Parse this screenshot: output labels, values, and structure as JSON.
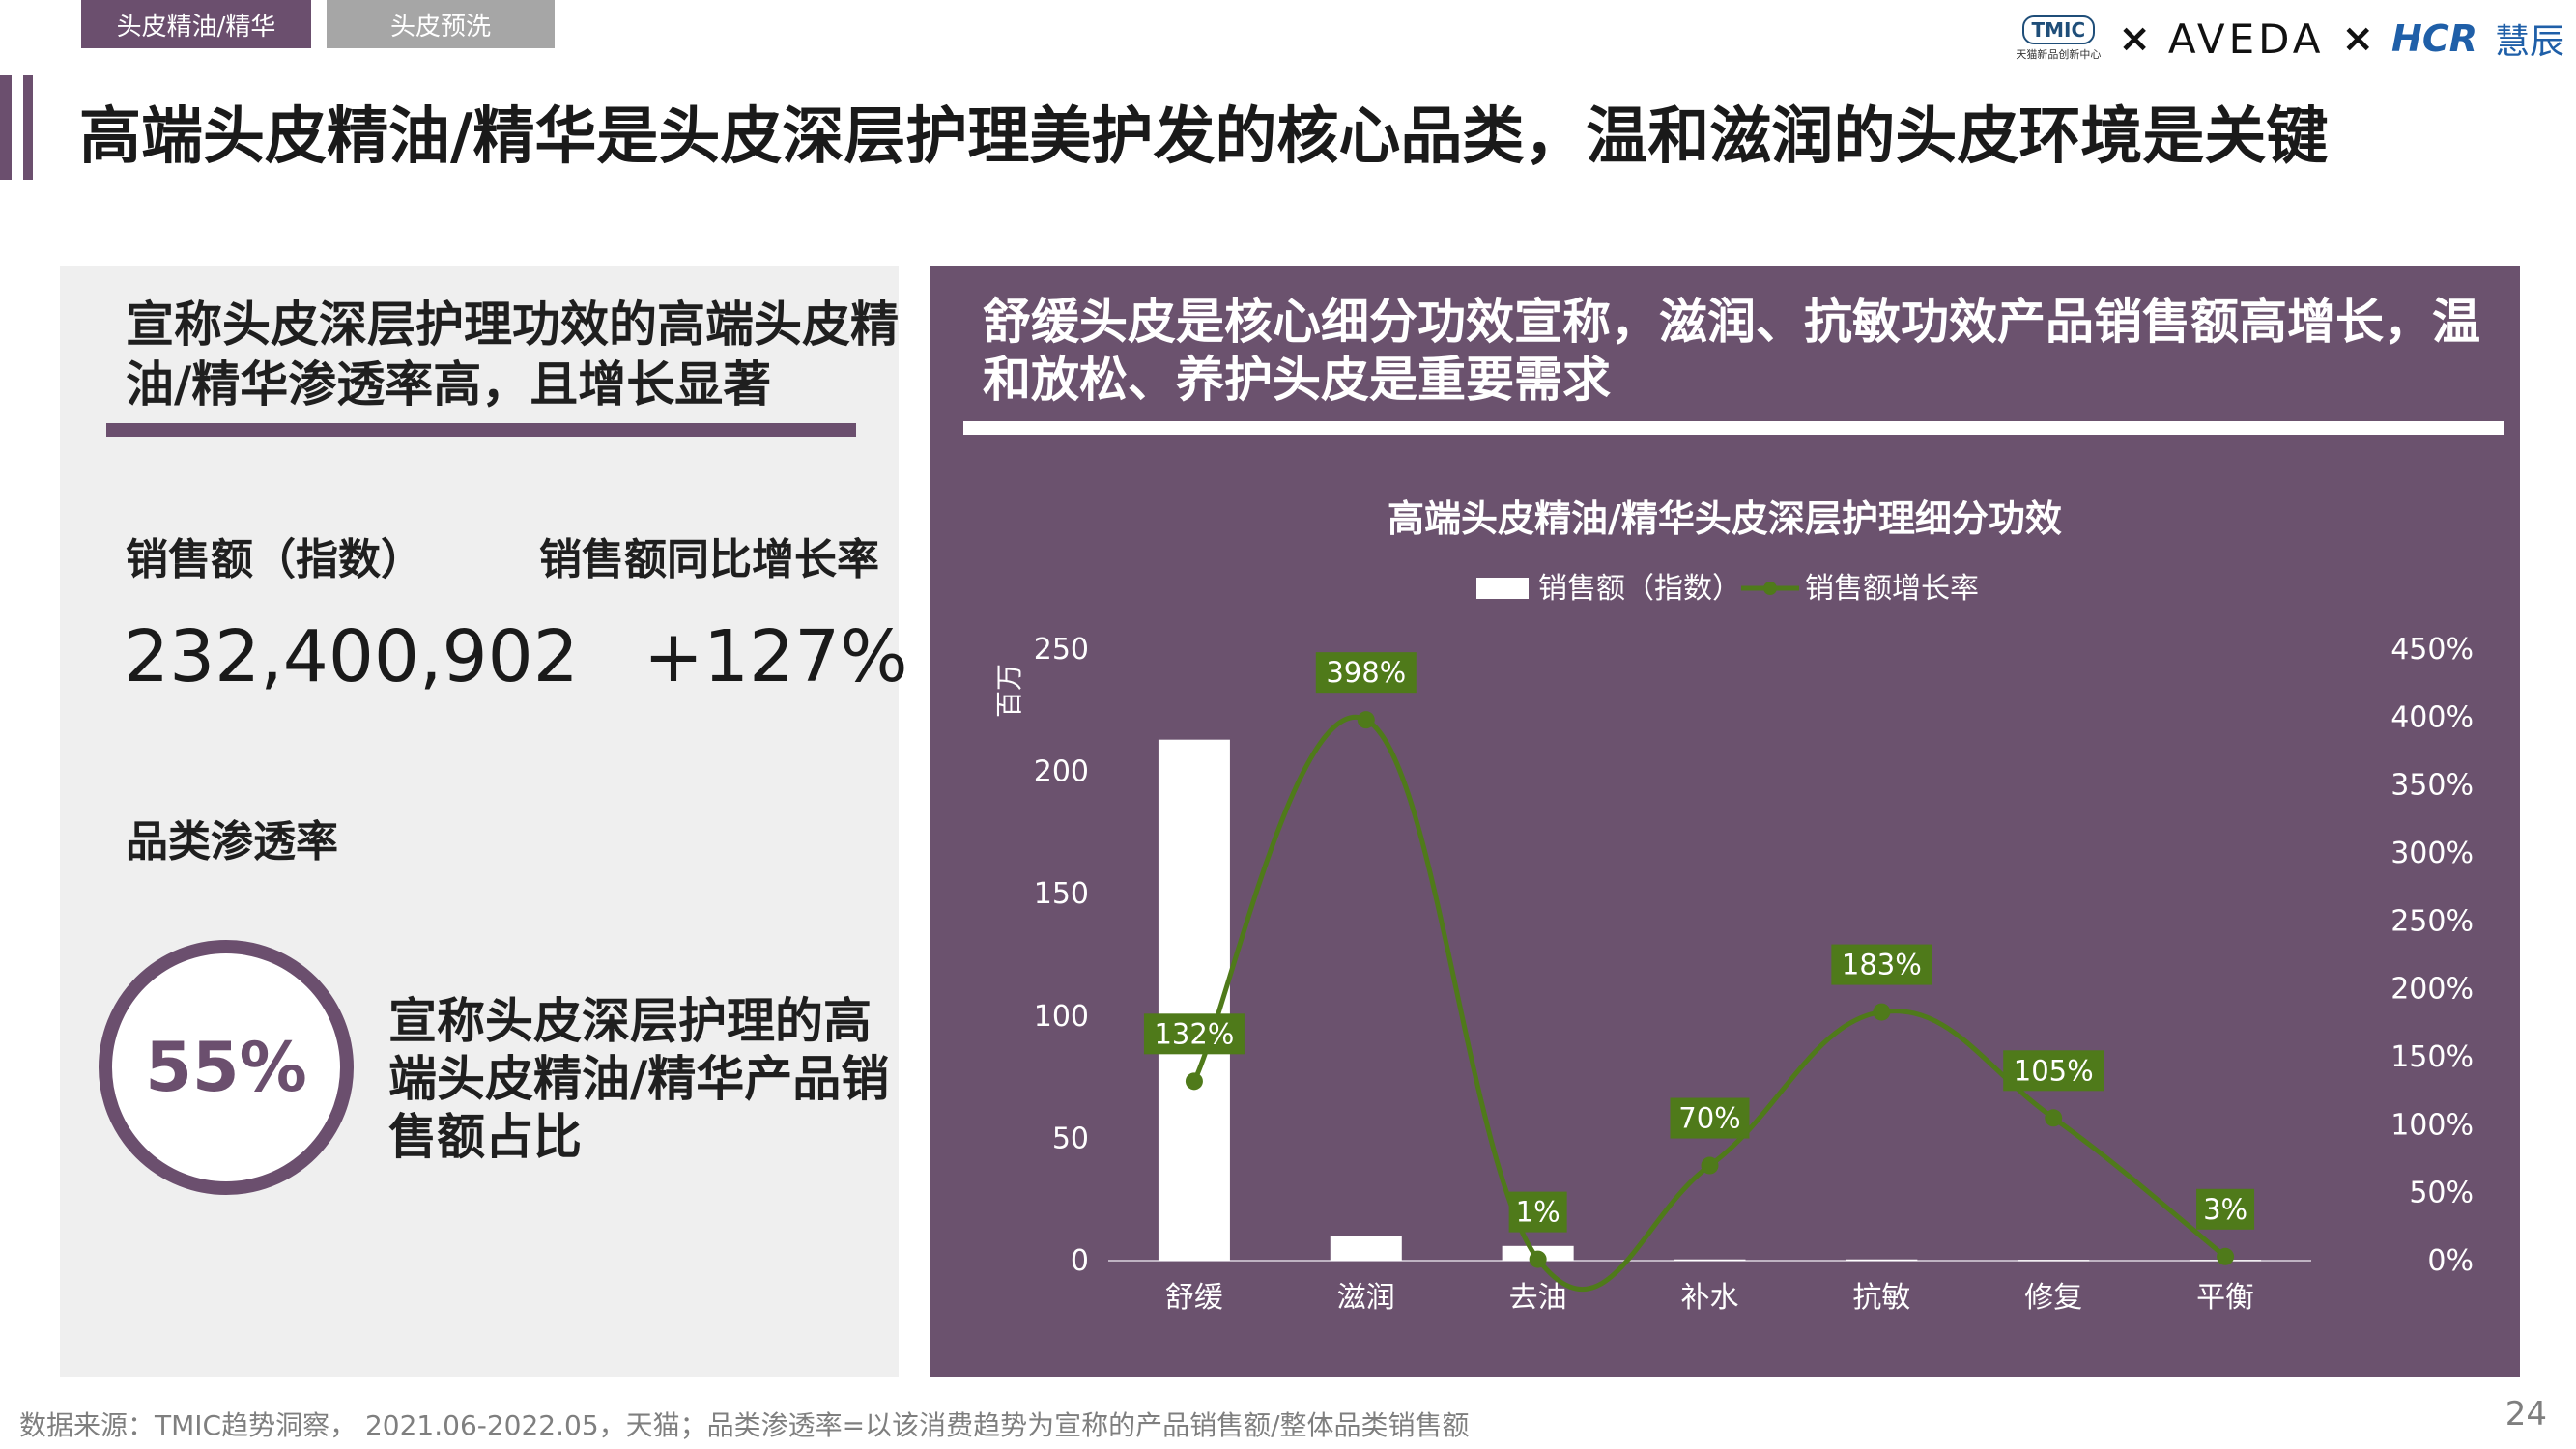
{
  "tabs": [
    {
      "label": "头皮精油/精华"
    },
    {
      "label": "头皮预洗"
    }
  ],
  "logos": {
    "tmic_mark": "TMIC",
    "tmic_sub": "天猫新品创新中心",
    "times_1": "×",
    "aveda": "AVEDA",
    "times_2": "×",
    "hcr": "HCR",
    "hcr_cn": "慧辰"
  },
  "page_title": "高端头皮精油/精华是头皮深层护理美护发的核心品类，温和滋润的头皮环境是关键",
  "left": {
    "heading": "宣称头皮深层护理功效的高端头皮精油/精华渗透率高，且增长显著",
    "sales_label": "销售额（指数）",
    "sales_value": "232,400,902",
    "growth_label": "销售额同比增长率",
    "growth_value": "+127%",
    "penetration_label": "品类渗透率",
    "penetration_value": "55%",
    "penetration_desc": "宣称头皮深层护理的高端头皮精油/精华产品销售额占比"
  },
  "right": {
    "heading": "舒缓头皮是核心细分功效宣称，滋润、抗敏功效产品销售额高增长，温和放松、养护头皮是重要需求"
  },
  "chart_data": {
    "type": "bar",
    "title": "高端头皮精油/精华头皮深层护理细分功效",
    "categories": [
      "舒缓",
      "滋润",
      "去油",
      "补水",
      "抗敏",
      "修复",
      "平衡"
    ],
    "series": [
      {
        "name": "销售额（指数）",
        "type": "bar",
        "axis": "left",
        "values": [
          213,
          10,
          6,
          0.5,
          0.5,
          0.3,
          0.3
        ]
      },
      {
        "name": "销售额增长率",
        "type": "line",
        "axis": "right",
        "values": [
          132,
          398,
          1,
          70,
          183,
          105,
          3
        ],
        "labels": [
          "132%",
          "398%",
          "1%",
          "70%",
          "183%",
          "105%",
          "3%"
        ]
      }
    ],
    "y_left": {
      "label": "百万",
      "ylim": [
        0,
        250
      ],
      "ticks": [
        "0",
        "50",
        "100",
        "150",
        "200",
        "250"
      ]
    },
    "y_right": {
      "ylim": [
        0,
        450
      ],
      "ticks": [
        "0%",
        "50%",
        "100%",
        "150%",
        "200%",
        "250%",
        "300%",
        "350%",
        "400%",
        "450%"
      ]
    },
    "legend_position": "top",
    "grid": false,
    "colors": {
      "bar": "#ffffff",
      "line": "#4f7a1a",
      "label_bg": "#4f7a1a",
      "text": "#ffffff"
    }
  },
  "footer": "数据来源：TMIC趋势洞察， 2021.06-2022.05，天猫；品类渗透率=以该消费趋势为宣称的产品销售额/整体品类销售额",
  "page_number": "24"
}
